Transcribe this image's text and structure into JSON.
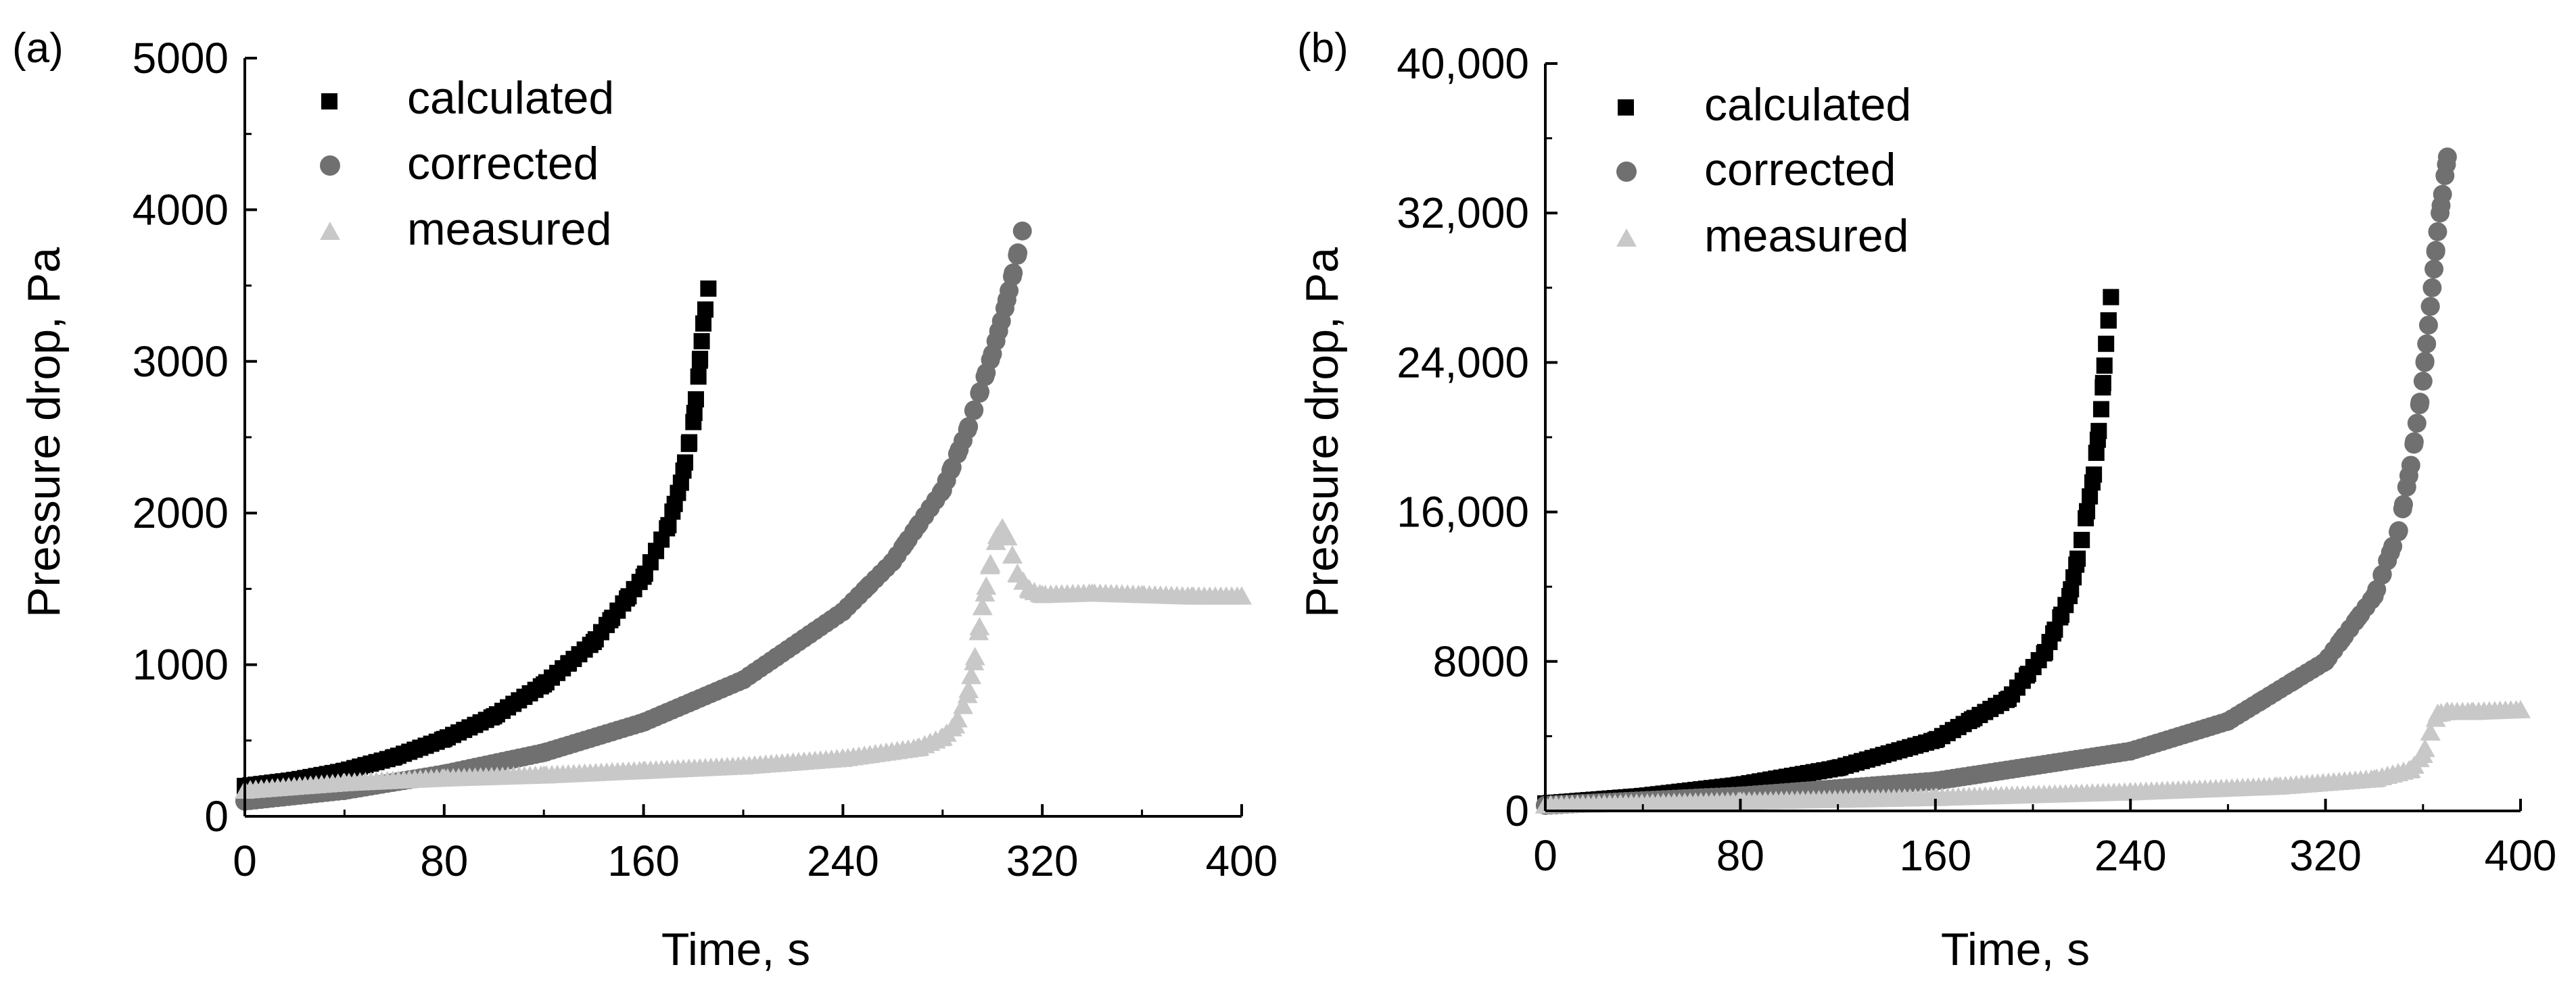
{
  "chart_data": [
    {
      "type": "scatter",
      "panel_label": "(a)",
      "xlabel": "Time, s",
      "ylabel": "Pressure drop, Pa",
      "xlim": [
        0,
        400
      ],
      "ylim": [
        0,
        5000
      ],
      "xticks": [
        0,
        80,
        160,
        240,
        320,
        400
      ],
      "xtick_labels": [
        "0",
        "80",
        "160",
        "240",
        "320",
        "400"
      ],
      "yticks": [
        0,
        1000,
        2000,
        3000,
        4000,
        5000
      ],
      "ytick_labels": [
        "0",
        "1000",
        "2000",
        "3000",
        "4000",
        "5000"
      ],
      "legend_position": "top-left",
      "series": [
        {
          "name": "calculated",
          "marker": "square",
          "color": "#000000",
          "x": [
            0,
            20,
            40,
            60,
            80,
            100,
            120,
            140,
            160,
            170,
            175,
            180,
            182,
            184,
            186
          ],
          "y": [
            200,
            240,
            300,
            390,
            510,
            660,
            870,
            1150,
            1580,
            1920,
            2200,
            2600,
            2900,
            3250,
            3480
          ]
        },
        {
          "name": "corrected",
          "marker": "circle",
          "color": "#707070",
          "x": [
            0,
            40,
            80,
            120,
            160,
            200,
            240,
            260,
            280,
            290,
            300,
            305,
            310,
            312
          ],
          "y": [
            100,
            170,
            280,
            420,
            620,
            900,
            1350,
            1680,
            2150,
            2550,
            3050,
            3350,
            3700,
            3860
          ]
        },
        {
          "name": "measured",
          "marker": "triangle",
          "color": "#c8c8c8",
          "x": [
            0,
            40,
            80,
            120,
            160,
            200,
            240,
            270,
            280,
            285,
            290,
            293,
            296,
            299,
            302,
            304,
            306,
            308,
            310,
            315,
            320,
            340,
            360,
            380,
            400
          ],
          "y": [
            170,
            220,
            250,
            270,
            300,
            330,
            380,
            450,
            520,
            600,
            800,
            1050,
            1380,
            1650,
            1850,
            1900,
            1840,
            1720,
            1600,
            1490,
            1460,
            1470,
            1460,
            1450,
            1450
          ]
        }
      ]
    },
    {
      "type": "scatter",
      "panel_label": "(b)",
      "xlabel": "Time, s",
      "ylabel": "Pressure drop, Pa",
      "xlim": [
        0,
        400
      ],
      "ylim": [
        0,
        40000
      ],
      "xticks": [
        0,
        80,
        160,
        240,
        320,
        400
      ],
      "xtick_labels": [
        "0",
        "80",
        "160",
        "240",
        "320",
        "400"
      ],
      "yticks": [
        0,
        8000,
        16000,
        24000,
        32000,
        40000
      ],
      "ytick_labels": [
        "0",
        "8000",
        "16,000",
        "24,000",
        "32,000",
        "40,000"
      ],
      "legend_position": "top-left",
      "series": [
        {
          "name": "calculated",
          "marker": "square",
          "color": "#000000",
          "x": [
            0,
            40,
            80,
            120,
            160,
            190,
            205,
            215,
            220,
            225,
            228,
            230,
            232
          ],
          "y": [
            400,
            800,
            1400,
            2300,
            3800,
            6000,
            8500,
            11500,
            14500,
            18000,
            21500,
            25000,
            27500
          ]
        },
        {
          "name": "corrected",
          "marker": "circle",
          "color": "#707070",
          "x": [
            0,
            80,
            160,
            240,
            280,
            320,
            340,
            350,
            355,
            360,
            363,
            366,
            368,
            370
          ],
          "y": [
            300,
            800,
            1600,
            3200,
            4800,
            8000,
            11500,
            15000,
            18500,
            23000,
            27000,
            31000,
            33000,
            35000
          ]
        },
        {
          "name": "measured",
          "marker": "triangle",
          "color": "#c8c8c8",
          "x": [
            0,
            80,
            160,
            240,
            300,
            340,
            355,
            360,
            363,
            366,
            370,
            380,
            400
          ],
          "y": [
            300,
            500,
            700,
            1000,
            1300,
            1700,
            2200,
            3000,
            4200,
            5200,
            5300,
            5300,
            5400
          ]
        }
      ]
    }
  ]
}
